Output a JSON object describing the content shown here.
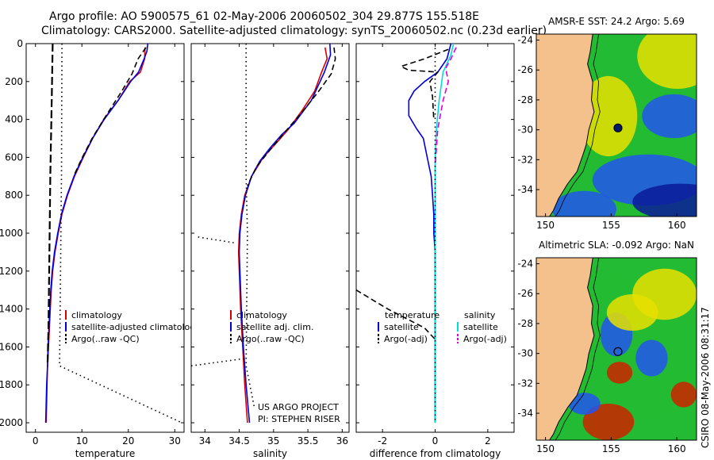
{
  "header": {
    "line1": "Argo profile: AO 5900575_61 02-May-2006 20060502_304 29.877S 155.518E",
    "line2": "Climatology: CARS2000. Satellite-adjusted climatology: synTS_20060502.nc (0.23d earlier)"
  },
  "side_stamp": "CSIRO 08-May-2006 08:31:17",
  "chart_data": [
    {
      "type": "line",
      "id": "temperature",
      "xlabel": "temperature",
      "ylabel": "",
      "xlim": [
        -2,
        32
      ],
      "ylim": [
        2050,
        0
      ],
      "xticks": [
        0,
        10,
        20,
        30
      ],
      "yticks": [
        0,
        200,
        400,
        600,
        800,
        1000,
        1200,
        1400,
        1600,
        1800,
        2000
      ],
      "legend": [
        "climatology",
        "satellite-adjusted climatology",
        "Argo(..raw -QC)"
      ],
      "series": [
        {
          "name": "climatology",
          "color": "#dd0000",
          "style": "solid",
          "points": [
            [
              23.6,
              20
            ],
            [
              23.5,
              80
            ],
            [
              22.6,
              150
            ],
            [
              20.3,
              200
            ],
            [
              17.8,
              300
            ],
            [
              14.7,
              400
            ],
            [
              12.3,
              500
            ],
            [
              10.3,
              600
            ],
            [
              8.4,
              700
            ],
            [
              6.9,
              800
            ],
            [
              5.7,
              900
            ],
            [
              4.9,
              1000
            ],
            [
              4.2,
              1100
            ],
            [
              3.7,
              1200
            ],
            [
              3.4,
              1300
            ],
            [
              3.2,
              1400
            ],
            [
              3.0,
              1500
            ],
            [
              2.8,
              1600
            ],
            [
              2.6,
              1700
            ],
            [
              2.5,
              1800
            ],
            [
              2.4,
              1900
            ],
            [
              2.3,
              2000
            ]
          ]
        },
        {
          "name": "satellite-adjusted climatology",
          "color": "#0000dd",
          "style": "solid",
          "points": [
            [
              24.2,
              0
            ],
            [
              24.0,
              40
            ],
            [
              23.4,
              80
            ],
            [
              22.2,
              150
            ],
            [
              20.5,
              200
            ],
            [
              17.8,
              300
            ],
            [
              14.8,
              400
            ],
            [
              12.3,
              500
            ],
            [
              10.2,
              600
            ],
            [
              8.3,
              700
            ],
            [
              6.8,
              800
            ],
            [
              5.6,
              900
            ],
            [
              4.8,
              1000
            ],
            [
              4.1,
              1100
            ],
            [
              3.6,
              1200
            ],
            [
              3.3,
              1300
            ],
            [
              3.1,
              1400
            ],
            [
              2.9,
              1500
            ],
            [
              2.7,
              1600
            ],
            [
              2.6,
              1700
            ],
            [
              2.4,
              1800
            ],
            [
              2.3,
              1900
            ],
            [
              2.2,
              2000
            ]
          ]
        },
        {
          "name": "Argo(..raw -QC)",
          "color": "#000000",
          "style": "dashed",
          "points": [
            [
              23.8,
              20
            ],
            [
              22.1,
              80
            ],
            [
              20.8,
              160
            ],
            [
              18.6,
              250
            ],
            [
              15.2,
              380
            ],
            [
              12.2,
              500
            ],
            [
              10.1,
              600
            ],
            [
              8.2,
              700
            ]
          ]
        },
        {
          "name": "std-lower",
          "color": "#000000",
          "style": "thick-dash",
          "points": [
            [
              3.7,
              0
            ],
            [
              3.5,
              300
            ],
            [
              3.2,
              700
            ],
            [
              3.0,
              1100
            ],
            [
              2.8,
              1500
            ],
            [
              2.6,
              1700
            ]
          ]
        },
        {
          "name": "std-upper",
          "color": "#000000",
          "style": "dotted",
          "points": [
            [
              5.7,
              0
            ],
            [
              5.6,
              700
            ],
            [
              5.4,
              1200
            ],
            [
              5.2,
              1700
            ],
            [
              31.5,
              2000
            ]
          ]
        }
      ]
    },
    {
      "type": "line",
      "id": "salinity",
      "xlabel": "salinity",
      "ylabel": "",
      "xlim": [
        33.8,
        36.1
      ],
      "ylim": [
        2050,
        0
      ],
      "xticks": [
        34,
        34.5,
        35,
        35.5,
        36
      ],
      "legend": [
        "climatology",
        "satellite adj. clim.",
        "Argo(..raw -QC)"
      ],
      "annotation": [
        "US ARGO PROJECT",
        "PI: STEPHEN RISER"
      ],
      "series": [
        {
          "name": "climatology",
          "color": "#dd0000",
          "style": "solid",
          "points": [
            [
              35.75,
              20
            ],
            [
              35.78,
              80
            ],
            [
              35.7,
              150
            ],
            [
              35.6,
              250
            ],
            [
              35.42,
              350
            ],
            [
              35.22,
              450
            ],
            [
              35.05,
              520
            ],
            [
              34.85,
              600
            ],
            [
              34.68,
              700
            ],
            [
              34.58,
              800
            ],
            [
              34.53,
              900
            ],
            [
              34.5,
              1000
            ],
            [
              34.49,
              1100
            ],
            [
              34.5,
              1200
            ],
            [
              34.52,
              1400
            ],
            [
              34.55,
              1600
            ],
            [
              34.58,
              1800
            ],
            [
              34.62,
              2000
            ]
          ]
        },
        {
          "name": "satellite adj. clim.",
          "color": "#0000dd",
          "style": "solid",
          "points": [
            [
              35.82,
              0
            ],
            [
              35.83,
              60
            ],
            [
              35.74,
              150
            ],
            [
              35.55,
              300
            ],
            [
              35.3,
              420
            ],
            [
              35.12,
              480
            ],
            [
              34.95,
              550
            ],
            [
              34.8,
              620
            ],
            [
              34.68,
              700
            ],
            [
              34.59,
              800
            ],
            [
              34.54,
              900
            ],
            [
              34.51,
              1000
            ],
            [
              34.5,
              1100
            ],
            [
              34.51,
              1200
            ],
            [
              34.53,
              1400
            ],
            [
              34.56,
              1600
            ],
            [
              34.6,
              1800
            ],
            [
              34.65,
              2000
            ]
          ]
        },
        {
          "name": "Argo(..raw -QC)",
          "color": "#000000",
          "style": "dashed",
          "points": [
            [
              35.88,
              20
            ],
            [
              35.9,
              80
            ],
            [
              35.84,
              160
            ],
            [
              35.66,
              250
            ],
            [
              35.42,
              360
            ],
            [
              35.18,
              460
            ],
            [
              34.95,
              560
            ],
            [
              34.75,
              650
            ],
            [
              34.62,
              750
            ]
          ]
        },
        {
          "name": "std-lower",
          "color": "#000000",
          "style": "dotted",
          "points": [
            [
              33.9,
              1020
            ],
            [
              34.42,
              1050
            ]
          ]
        },
        {
          "name": "std-lower-2",
          "color": "#000000",
          "style": "dotted",
          "points": [
            [
              33.8,
              1700
            ],
            [
              34.6,
              1660
            ]
          ]
        },
        {
          "name": "std-upper",
          "color": "#000000",
          "style": "dotted",
          "points": [
            [
              34.6,
              0
            ],
            [
              34.6,
              700
            ],
            [
              34.62,
              1000
            ],
            [
              34.6,
              1700
            ],
            [
              34.72,
              1920
            ]
          ]
        }
      ]
    },
    {
      "type": "line",
      "id": "difference",
      "xlabel": "difference from climatology",
      "ylabel": "",
      "xlim": [
        -3.0,
        3.0
      ],
      "ylim": [
        2050,
        0
      ],
      "xticks": [
        -2,
        0,
        2
      ],
      "legend_temperature": {
        "title": "temperature",
        "entries": [
          "satellite",
          "Argo(-adj)"
        ]
      },
      "legend_salinity": {
        "title": "salinity",
        "entries": [
          "satellite",
          "Argo(-adj)"
        ]
      },
      "series": [
        {
          "name": "temperature satellite",
          "color": "#0000dd",
          "style": "solid",
          "points": [
            [
              0.6,
              0
            ],
            [
              0.45,
              80
            ],
            [
              0.1,
              150
            ],
            [
              -0.4,
              200
            ],
            [
              -0.8,
              250
            ],
            [
              -1.0,
              300
            ],
            [
              -1.0,
              380
            ],
            [
              -0.7,
              450
            ],
            [
              -0.45,
              500
            ],
            [
              -0.3,
              600
            ],
            [
              -0.15,
              700
            ],
            [
              -0.1,
              800
            ],
            [
              -0.05,
              900
            ],
            [
              -0.05,
              1000
            ],
            [
              0,
              1100
            ],
            [
              0,
              1200
            ],
            [
              0,
              1400
            ],
            [
              0,
              1600
            ],
            [
              0,
              1800
            ],
            [
              0,
              2000
            ]
          ]
        },
        {
          "name": "temperature Argo(-adj)",
          "color": "#000000",
          "style": "dashed",
          "points": [
            [
              0.5,
              30
            ],
            [
              -0.4,
              80
            ],
            [
              -1.3,
              120
            ],
            [
              -1.0,
              140
            ],
            [
              0.1,
              150
            ],
            [
              -0.2,
              200
            ],
            [
              -0.1,
              280
            ],
            [
              -0.05,
              400
            ]
          ]
        },
        {
          "name": "salinity satellite",
          "color": "#00dddd",
          "style": "solid",
          "points": [
            [
              0.7,
              0
            ],
            [
              0.6,
              60
            ],
            [
              0.3,
              150
            ],
            [
              0.15,
              300
            ],
            [
              0.05,
              450
            ],
            [
              0.0,
              600
            ],
            [
              0,
              800
            ],
            [
              0,
              1000
            ],
            [
              0,
              1200
            ],
            [
              0,
              1500
            ],
            [
              0,
              1800
            ],
            [
              0,
              2000
            ]
          ]
        },
        {
          "name": "salinity Argo(-adj)",
          "color": "#dd00dd",
          "style": "dashed",
          "points": [
            [
              0.8,
              20
            ],
            [
              0.6,
              80
            ],
            [
              0.4,
              130
            ],
            [
              0.5,
              200
            ],
            [
              0.3,
              300
            ],
            [
              0.1,
              450
            ],
            [
              0,
              650
            ]
          ]
        },
        {
          "name": "offscale",
          "color": "#000000",
          "style": "dashed",
          "points": [
            [
              -3.0,
              1300
            ],
            [
              -1.8,
              1400
            ],
            [
              -0.4,
              1500
            ],
            [
              0,
              1560
            ]
          ]
        },
        {
          "name": "zero",
          "color": "#000000",
          "style": "dotted",
          "points": [
            [
              0,
              0
            ],
            [
              0,
              2000
            ]
          ]
        }
      ]
    }
  ],
  "maps": [
    {
      "title": "AMSR-E SST: 24.2 Argo: 5.69",
      "xlim": [
        149.3,
        161.5
      ],
      "ylim": [
        -35.8,
        -23.6
      ],
      "xticks": [
        150,
        155,
        160
      ],
      "yticks": [
        -24,
        -26,
        -28,
        -30,
        -32,
        -34
      ],
      "marker": {
        "lon": 155.518,
        "lat": -29.877
      },
      "colors": {
        "land": "#f4c08c",
        "warm": "#e8e000",
        "green": "#22bb33",
        "cool": "#2255ee",
        "deep": "#0a1a9a"
      }
    },
    {
      "title": "Altimetric SLA: -0.092 Argo: NaN",
      "xlim": [
        149.3,
        161.5
      ],
      "ylim": [
        -35.8,
        -23.6
      ],
      "xticks": [
        150,
        155,
        160
      ],
      "yticks": [
        -24,
        -26,
        -28,
        -30,
        -32,
        -34
      ],
      "marker": {
        "lon": 155.518,
        "lat": -29.877
      },
      "colors": {
        "land": "#f4c08c",
        "warm": "#e8e000",
        "green": "#22bb33",
        "cool": "#2255ee",
        "hot": "#cc2200"
      }
    }
  ]
}
